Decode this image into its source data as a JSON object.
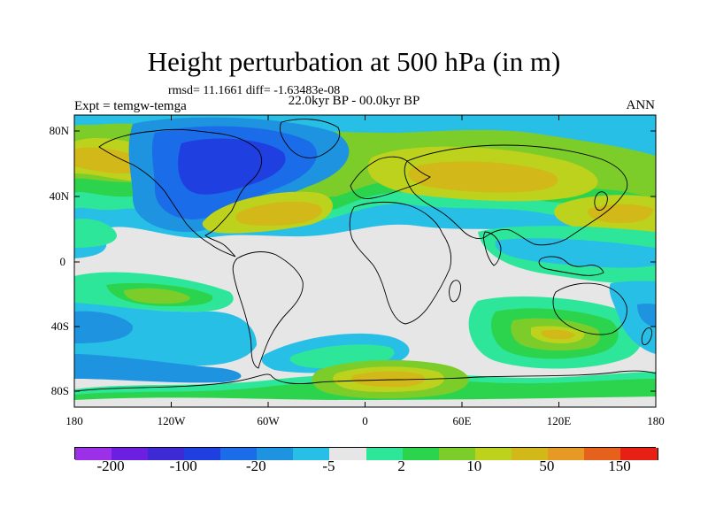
{
  "header": {
    "title": "Height perturbation at 500 hPa (in m)",
    "stats": "rmsd= 11.1661 diff= -1.63483e-08",
    "period": "22.0kyr BP - 00.0kyr BP",
    "experiment": "Expt = temgw-temga",
    "season": "ANN"
  },
  "map": {
    "lat_labels": [
      "80N",
      "40N",
      "0",
      "40S",
      "80S"
    ],
    "lon_labels": [
      "180",
      "120W",
      "60W",
      "0",
      "60E",
      "120E",
      "180"
    ]
  },
  "colorbar": {
    "colors": [
      "#9b30e8",
      "#6c1fe0",
      "#3d2ad4",
      "#1f3fe0",
      "#1a6ce8",
      "#1e93e0",
      "#27bfe6",
      "#e6e6e6",
      "#2ee69a",
      "#2cd44e",
      "#7ccd2a",
      "#bcd21c",
      "#d2b818",
      "#e69a24",
      "#e6621c",
      "#e62014"
    ],
    "labels": [
      "-200",
      "-100",
      "-20",
      "-5",
      "2",
      "10",
      "50",
      "150"
    ]
  }
}
